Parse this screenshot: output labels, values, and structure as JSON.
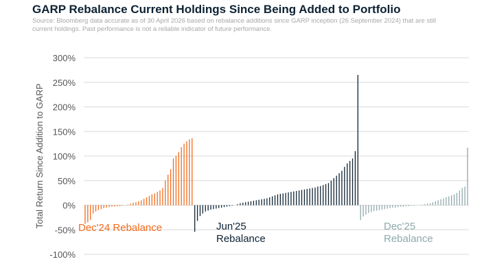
{
  "title": "GARP Rebalance Current Holdings Since Being Added to Portfolio",
  "source": "Source: Bloomberg data accurate as of 30 April 2026 based on rebalance additions since GARP inception (26 September 2024) that are still current holdings. Past performance is not a reliable indicator of future performance.",
  "colors": {
    "dec24": "#f26a1b",
    "jun25": "#0d2233",
    "dec25": "#8fa8ab",
    "grid": "#d9d9d9",
    "text": "#555555"
  },
  "chart_data": {
    "type": "bar",
    "ylabel": "Total Return Since Addition to GARP",
    "ylim": [
      -100,
      300
    ],
    "yticks": [
      -100,
      -50,
      0,
      50,
      100,
      150,
      200,
      250,
      300
    ],
    "ytick_labels": [
      "-100%",
      "-50%",
      "0%",
      "50%",
      "100%",
      "150%",
      "200%",
      "250%",
      "300%"
    ],
    "grid": true,
    "series": [
      {
        "name": "Dec'24 Rebalance",
        "label_lines": [
          "Dec'24 Rebalance"
        ],
        "color_key": "dec24",
        "values": [
          -38,
          -35,
          -30,
          -17,
          -13,
          -10,
          -8,
          -6,
          -5,
          -4,
          -3,
          -3,
          -2,
          -2,
          -1,
          0,
          1,
          3,
          5,
          6,
          8,
          10,
          13,
          16,
          19,
          22,
          24,
          27,
          30,
          35,
          50,
          62,
          73,
          95,
          100,
          108,
          118,
          125,
          130,
          134,
          136
        ]
      },
      {
        "name": "Jun'25 Rebalance",
        "label_lines": [
          "Jun'25",
          "Rebalance"
        ],
        "color_key": "jun25",
        "values": [
          -54,
          -32,
          -22,
          -17,
          -13,
          -11,
          -9,
          -8,
          -7,
          -6,
          -5,
          -4,
          -3,
          -2,
          -1,
          0,
          2,
          4,
          5,
          6,
          7,
          8,
          9,
          10,
          11,
          12,
          13,
          14,
          16,
          18,
          20,
          22,
          23,
          24,
          25,
          26,
          27,
          28,
          29,
          30,
          31,
          32,
          33,
          34,
          35,
          36,
          38,
          39,
          41,
          43,
          45,
          50,
          55,
          60,
          65,
          70,
          78,
          85,
          90,
          95,
          110,
          265
        ]
      },
      {
        "name": "Dec'25 Rebalance",
        "label_lines": [
          "Dec'25",
          "Rebalance"
        ],
        "color_key": "dec25",
        "values": [
          -30,
          -23,
          -19,
          -16,
          -14,
          -12,
          -11,
          -10,
          -9,
          -8,
          -7,
          -6,
          -5,
          -5,
          -4,
          -3,
          -3,
          -2,
          -2,
          -1,
          -1,
          0,
          0,
          1,
          2,
          3,
          4,
          6,
          8,
          10,
          12,
          14,
          16,
          18,
          20,
          22,
          25,
          30,
          35,
          38,
          117
        ]
      }
    ]
  }
}
